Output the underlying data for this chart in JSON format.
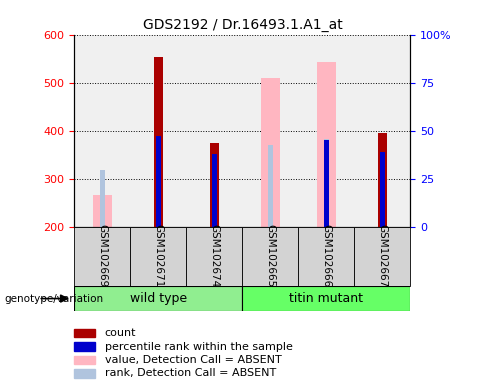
{
  "title": "GDS2192 / Dr.16493.1.A1_at",
  "samples": [
    "GSM102669",
    "GSM102671",
    "GSM102674",
    "GSM102665",
    "GSM102666",
    "GSM102667"
  ],
  "group_wt": {
    "name": "wild type",
    "color": "#90EE90",
    "indices": [
      0,
      1,
      2
    ]
  },
  "group_mut": {
    "name": "titin mutant",
    "color": "#66FF66",
    "indices": [
      3,
      4,
      5
    ]
  },
  "ylim_left": [
    200,
    600
  ],
  "ylim_right": [
    0,
    100
  ],
  "yticks_left": [
    200,
    300,
    400,
    500,
    600
  ],
  "yticks_right": [
    0,
    25,
    50,
    75,
    100
  ],
  "yticklabels_right": [
    "0",
    "25",
    "50",
    "75",
    "100%"
  ],
  "count_values": [
    null,
    553,
    375,
    null,
    null,
    395
  ],
  "rank_values": [
    null,
    388,
    352,
    null,
    380,
    355
  ],
  "val_absent_values": [
    265,
    null,
    null,
    510,
    543,
    null
  ],
  "rank_absent_values": [
    318,
    null,
    null,
    370,
    383,
    null
  ],
  "count_color": "#aa0000",
  "rank_color": "#0000cc",
  "val_absent_color": "#ffb6c1",
  "rank_absent_color": "#b0c4de",
  "wide_bar_width": 0.35,
  "narrow_bar_width": 0.08,
  "count_bar_width": 0.15,
  "bg_color": "#f0f0f0",
  "sample_cell_color": "#d3d3d3",
  "legend_items": [
    {
      "label": "count",
      "color": "#aa0000"
    },
    {
      "label": "percentile rank within the sample",
      "color": "#0000cc"
    },
    {
      "label": "value, Detection Call = ABSENT",
      "color": "#ffb6c1"
    },
    {
      "label": "rank, Detection Call = ABSENT",
      "color": "#b0c4de"
    }
  ],
  "genotype_label": "genotype/variation"
}
